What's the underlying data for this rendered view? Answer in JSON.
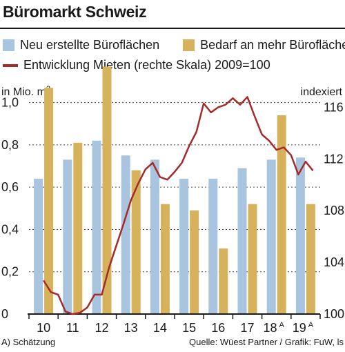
{
  "title": "Büromarkt Schweiz",
  "colors": {
    "neu": "#a9c4de",
    "bedarf": "#d6b25c",
    "mieten": "#a52a2a"
  },
  "footer": {
    "note": "A) Schätzung",
    "source": "Quelle: Wüest Partner / Grafik: FuW, ls"
  },
  "chart_data": {
    "type": "bar",
    "title": "Büromarkt Schweiz",
    "categories": [
      "10",
      "11",
      "12",
      "13",
      "14",
      "15",
      "16",
      "17",
      "18",
      "19"
    ],
    "category_superscripts": [
      "",
      "",
      "",
      "",
      "",
      "",
      "",
      "",
      "A",
      "A"
    ],
    "ylabel": "in Mio. m2",
    "ylabel_superscript": "2",
    "ylabel_base": "in Mio. m",
    "ylim": [
      0,
      1.1
    ],
    "yticks": [
      "0",
      "0,2",
      "0,4",
      "0,6",
      "0,8",
      "1,0"
    ],
    "yticks_values": [
      0,
      0.2,
      0.4,
      0.6,
      0.8,
      1.0
    ],
    "y2label": "indexiert",
    "y2lim": [
      100,
      118
    ],
    "y2ticks": [
      "100",
      "104",
      "108",
      "112",
      "116"
    ],
    "y2ticks_values": [
      100,
      104,
      108,
      112,
      116
    ],
    "grid": true,
    "legend_position": "top",
    "series": [
      {
        "name": "Neu erstellte Büroflächen",
        "type": "bar",
        "axis": "left",
        "values": [
          0.64,
          0.73,
          0.82,
          0.75,
          0.73,
          0.64,
          0.64,
          0.69,
          0.73,
          0.74
        ]
      },
      {
        "name": "Bedarf an mehr Büroflächen",
        "type": "bar",
        "axis": "left",
        "values": [
          1.07,
          0.81,
          1.17,
          0.68,
          0.52,
          0.49,
          0.31,
          0.52,
          0.94,
          0.52
        ]
      },
      {
        "name": "Entwicklung Mieten (rechte Skala) 2009=100",
        "type": "line",
        "axis": "right",
        "x": [
          10.0,
          10.25,
          10.5,
          10.75,
          11.0,
          11.25,
          11.5,
          11.75,
          12.0,
          12.25,
          12.5,
          12.75,
          13.0,
          13.25,
          13.5,
          13.75,
          14.0,
          14.25,
          14.5,
          14.75,
          15.0,
          15.25,
          15.5,
          15.75,
          16.0,
          16.25,
          16.5,
          16.75,
          17.0,
          17.25,
          17.5,
          17.75,
          18.0,
          18.25,
          18.5,
          18.75,
          19.0,
          19.25
        ],
        "values": [
          102.6,
          101.7,
          101.5,
          100.2,
          100.0,
          100.1,
          100.5,
          101.5,
          101.5,
          103.6,
          105.3,
          107.0,
          108.8,
          110.1,
          111.2,
          111.7,
          110.6,
          110.4,
          111.0,
          111.7,
          113.0,
          114.1,
          116.3,
          115.6,
          116.0,
          116.2,
          116.7,
          116.2,
          116.8,
          115.3,
          113.9,
          113.4,
          112.7,
          112.9,
          112.3,
          110.8,
          111.8,
          111.1
        ]
      }
    ]
  }
}
